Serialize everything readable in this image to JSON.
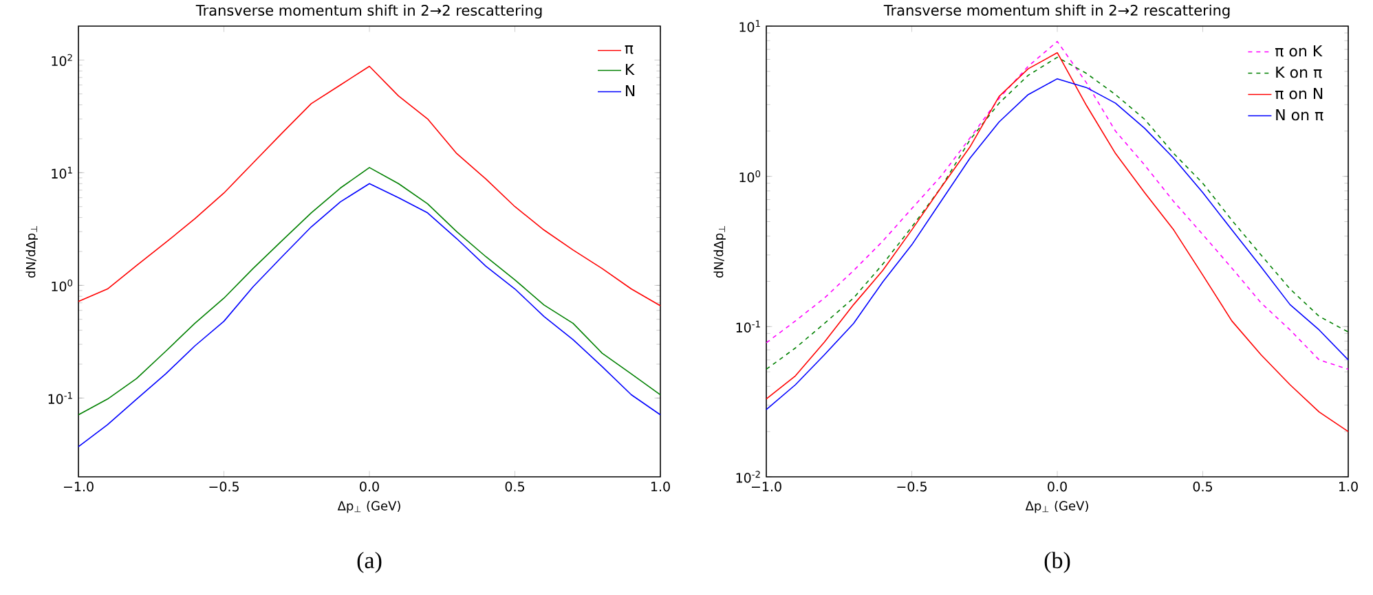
{
  "chart_data": [
    {
      "type": "line",
      "title": "Transverse momentum shift in 2→2 rescattering",
      "xlabel": "Δp$_{⊥}$ (GeV)",
      "ylabel": "dN/dΔp$_{⊥}$",
      "annotations": [
        "(a)"
      ],
      "log": "y",
      "legend": "top right",
      "x": [
        -1.0,
        -0.9,
        -0.8,
        -0.7,
        -0.6,
        -0.5,
        -0.4,
        -0.3,
        -0.2,
        -0.1,
        0.0,
        0.1,
        0.2,
        0.3,
        0.4,
        0.5,
        0.6,
        0.7,
        0.8,
        0.9,
        1.0
      ],
      "xlim": [
        -1.0,
        1.0
      ],
      "ylim": [
        0.02,
        200
      ],
      "xticks": [
        {
          "value": -1.0,
          "label": "−1.0"
        },
        {
          "value": -0.5,
          "label": "−0.5"
        },
        {
          "value": 0.0,
          "label": "0.0"
        },
        {
          "value": 0.5,
          "label": "0.5"
        },
        {
          "value": 1.0,
          "label": "1.0"
        }
      ],
      "yticks": [
        {
          "value": 0.1,
          "label": "10$^{-1}$"
        },
        {
          "value": 1,
          "label": "10$^{0}$"
        },
        {
          "value": 10,
          "label": "10$^{1}$"
        },
        {
          "value": 100,
          "label": "10$^{2}$"
        }
      ],
      "series": [
        {
          "name": "π",
          "color": "#ff0000",
          "line_style": "solid",
          "values": [
            0.72,
            0.93,
            1.5,
            2.4,
            3.9,
            6.6,
            12.2,
            22.5,
            41,
            60,
            88,
            48,
            30,
            14.8,
            8.8,
            5,
            3.1,
            2.06,
            1.41,
            0.93,
            0.66
          ]
        },
        {
          "name": "K",
          "color": "#008000",
          "line_style": "solid",
          "values": [
            0.071,
            0.098,
            0.149,
            0.26,
            0.46,
            0.77,
            1.41,
            2.5,
            4.4,
            7.3,
            11.1,
            8.0,
            5.3,
            3.0,
            1.8,
            1.12,
            0.67,
            0.46,
            0.25,
            0.164,
            0.107
          ]
        },
        {
          "name": "N",
          "color": "#0000ff",
          "line_style": "solid",
          "values": [
            0.037,
            0.058,
            0.098,
            0.164,
            0.29,
            0.48,
            0.97,
            1.8,
            3.3,
            5.5,
            8.0,
            6.0,
            4.4,
            2.6,
            1.48,
            0.93,
            0.53,
            0.33,
            0.19,
            0.107,
            0.071
          ]
        }
      ]
    },
    {
      "type": "line",
      "title": "Transverse momentum shift in 2→2 rescattering",
      "xlabel": "Δp$_{⊥}$ (GeV)",
      "ylabel": "dN/dΔp$_{⊥}$",
      "annotations": [
        "(b)"
      ],
      "log": "y",
      "legend": "top right",
      "x": [
        -1.0,
        -0.9,
        -0.8,
        -0.7,
        -0.6,
        -0.5,
        -0.4,
        -0.3,
        -0.2,
        -0.1,
        0.0,
        0.1,
        0.2,
        0.3,
        0.4,
        0.5,
        0.6,
        0.7,
        0.8,
        0.9,
        1.0
      ],
      "xlim": [
        -1.0,
        1.0
      ],
      "ylim": [
        0.01,
        10
      ],
      "xticks": [
        {
          "value": -1.0,
          "label": "−1.0"
        },
        {
          "value": -0.5,
          "label": "−0.5"
        },
        {
          "value": 0.0,
          "label": "0.0"
        },
        {
          "value": 0.5,
          "label": "0.5"
        },
        {
          "value": 1.0,
          "label": "1.0"
        }
      ],
      "yticks": [
        {
          "value": 0.01,
          "label": "10$^{-2}$"
        },
        {
          "value": 0.1,
          "label": "10$^{-1}$"
        },
        {
          "value": 1,
          "label": "10$^{0}$"
        },
        {
          "value": 10,
          "label": "10$^{1}$"
        }
      ],
      "series": [
        {
          "name": "π on K",
          "color": "#ff00ff",
          "line_style": "dashed",
          "values": [
            0.078,
            0.109,
            0.155,
            0.236,
            0.37,
            0.61,
            1.0,
            1.8,
            3.3,
            5.4,
            7.9,
            4.2,
            2.0,
            1.19,
            0.68,
            0.41,
            0.245,
            0.144,
            0.095,
            0.06,
            0.052
          ]
        },
        {
          "name": "K on π",
          "color": "#008000",
          "line_style": "dashed",
          "values": [
            0.052,
            0.072,
            0.105,
            0.155,
            0.26,
            0.46,
            0.84,
            1.75,
            3.07,
            4.7,
            6.2,
            4.85,
            3.5,
            2.4,
            1.42,
            0.9,
            0.51,
            0.3,
            0.178,
            0.117,
            0.092
          ]
        },
        {
          "name": "π on N",
          "color": "#ff0000",
          "line_style": "solid",
          "values": [
            0.033,
            0.047,
            0.079,
            0.14,
            0.236,
            0.44,
            0.84,
            1.57,
            3.4,
            5.2,
            6.65,
            2.97,
            1.42,
            0.78,
            0.44,
            0.22,
            0.109,
            0.065,
            0.041,
            0.027,
            0.02
          ]
        },
        {
          "name": "N on π",
          "color": "#0000ff",
          "line_style": "solid",
          "values": [
            0.028,
            0.041,
            0.065,
            0.105,
            0.198,
            0.35,
            0.68,
            1.32,
            2.3,
            3.5,
            4.46,
            3.9,
            3.07,
            2.09,
            1.32,
            0.78,
            0.44,
            0.25,
            0.14,
            0.095,
            0.06
          ]
        }
      ]
    }
  ]
}
